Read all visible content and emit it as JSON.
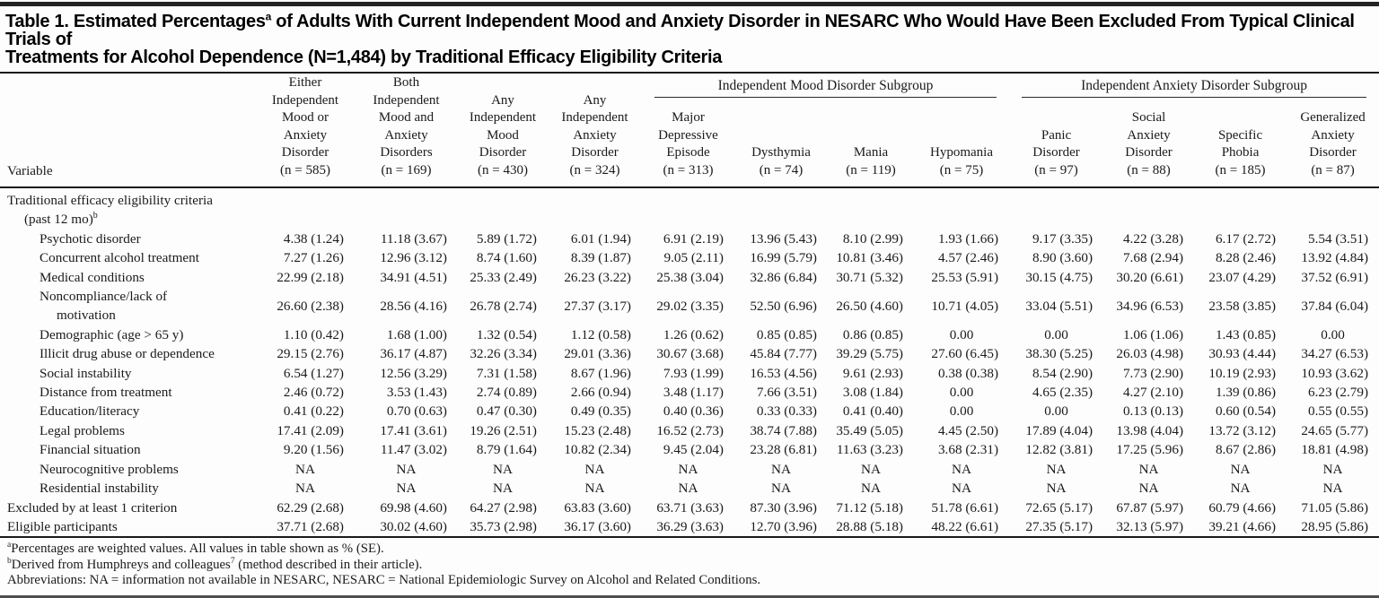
{
  "title": {
    "pre": "Table 1. Estimated Percentages",
    "sup": "a",
    "post": " of Adults With Current Independent Mood and Anxiety Disorder in NESARC Who Would Have Been Excluded From Typical Clinical Trials of",
    "line2": "Treatments for Alcohol Dependence (N=1,484) by Traditional Efficacy Eligibility Criteria"
  },
  "table": {
    "variable_header": "Variable",
    "groups": [
      {
        "label": "Independent Mood Disorder Subgroup",
        "span": 4
      },
      {
        "label": "Independent Anxiety Disorder Subgroup",
        "span": 4
      }
    ],
    "columns": [
      {
        "label": "Either\nIndependent\nMood or\nAnxiety\nDisorder\n(n = 585)"
      },
      {
        "label": "Both\nIndependent\nMood and\nAnxiety\nDisorders\n(n = 169)"
      },
      {
        "label": "Any\nIndependent\nMood\nDisorder\n(n = 430)"
      },
      {
        "label": "Any\nIndependent\nAnxiety\nDisorder\n(n = 324)"
      },
      {
        "label": "Major\nDepressive\nEpisode\n(n = 313)",
        "group": "Independent Mood Disorder Subgroup"
      },
      {
        "label": "Dysthymia\n(n = 74)",
        "group": "Independent Mood Disorder Subgroup"
      },
      {
        "label": "Mania\n(n = 119)",
        "group": "Independent Mood Disorder Subgroup"
      },
      {
        "label": "Hypomania\n(n = 75)",
        "group": "Independent Mood Disorder Subgroup"
      },
      {
        "label": "Panic\nDisorder\n(n = 97)",
        "group": "Independent Anxiety Disorder Subgroup"
      },
      {
        "label": "Social\nAnxiety\nDisorder\n(n = 88)",
        "group": "Independent Anxiety Disorder Subgroup"
      },
      {
        "label": "Specific\nPhobia\n(n = 185)",
        "group": "Independent Anxiety Disorder Subgroup"
      },
      {
        "label": "Generalized\nAnxiety\nDisorder\n(n = 87)",
        "group": "Independent Anxiety Disorder Subgroup"
      }
    ],
    "rows": [
      {
        "label": "Traditional efficacy eligibility criteria\n     (past 12 mo)",
        "sup": "b",
        "indent": 0,
        "values": []
      },
      {
        "label": "Psychotic disorder",
        "indent": 1,
        "values": [
          "4.38 (1.24)",
          "11.18 (3.67)",
          "5.89 (1.72)",
          "6.01 (1.94)",
          "6.91 (2.19)",
          "13.96 (5.43)",
          "8.10 (2.99)",
          "1.93 (1.66)",
          "9.17 (3.35)",
          "4.22 (3.28)",
          "6.17 (2.72)",
          "5.54 (3.51)"
        ]
      },
      {
        "label": "Concurrent alcohol treatment",
        "indent": 1,
        "values": [
          "7.27 (1.26)",
          "12.96 (3.12)",
          "8.74 (1.60)",
          "8.39 (1.87)",
          "9.05 (2.11)",
          "16.99 (5.79)",
          "10.81 (3.46)",
          "4.57 (2.46)",
          "8.90 (3.60)",
          "7.68 (2.94)",
          "8.28 (2.46)",
          "13.92 (4.84)"
        ]
      },
      {
        "label": "Medical conditions",
        "indent": 1,
        "values": [
          "22.99 (2.18)",
          "34.91 (4.51)",
          "25.33 (2.49)",
          "26.23 (3.22)",
          "25.38 (3.04)",
          "32.86 (6.84)",
          "30.71 (5.32)",
          "25.53 (5.91)",
          "30.15 (4.75)",
          "30.20 (6.61)",
          "23.07 (4.29)",
          "37.52 (6.91)"
        ]
      },
      {
        "label": "Noncompliance/lack of\n     motivation",
        "indent": 1,
        "values": [
          "26.60 (2.38)",
          "28.56 (4.16)",
          "26.78 (2.74)",
          "27.37 (3.17)",
          "29.02 (3.35)",
          "52.50 (6.96)",
          "26.50 (4.60)",
          "10.71 (4.05)",
          "33.04 (5.51)",
          "34.96 (6.53)",
          "23.58 (3.85)",
          "37.84 (6.04)"
        ]
      },
      {
        "label": "Demographic (age > 65 y)",
        "indent": 1,
        "values": [
          "1.10 (0.42)",
          "1.68 (1.00)",
          "1.32 (0.54)",
          "1.12 (0.58)",
          "1.26 (0.62)",
          "0.85 (0.85)",
          "0.86 (0.85)",
          "0.00",
          "0.00",
          "1.06 (1.06)",
          "1.43 (0.85)",
          "0.00"
        ]
      },
      {
        "label": "Illicit drug abuse or dependence",
        "indent": 1,
        "values": [
          "29.15 (2.76)",
          "36.17 (4.87)",
          "32.26 (3.34)",
          "29.01 (3.36)",
          "30.67 (3.68)",
          "45.84 (7.77)",
          "39.29 (5.75)",
          "27.60 (6.45)",
          "38.30 (5.25)",
          "26.03 (4.98)",
          "30.93 (4.44)",
          "34.27 (6.53)"
        ]
      },
      {
        "label": "Social instability",
        "indent": 1,
        "values": [
          "6.54 (1.27)",
          "12.56 (3.29)",
          "7.31 (1.58)",
          "8.67 (1.96)",
          "7.93 (1.99)",
          "16.53 (4.56)",
          "9.61 (2.93)",
          "0.38 (0.38)",
          "8.54 (2.90)",
          "7.73 (2.90)",
          "10.19 (2.93)",
          "10.93 (3.62)"
        ]
      },
      {
        "label": "Distance from treatment",
        "indent": 1,
        "values": [
          "2.46 (0.72)",
          "3.53 (1.43)",
          "2.74 (0.89)",
          "2.66 (0.94)",
          "3.48 (1.17)",
          "7.66 (3.51)",
          "3.08 (1.84)",
          "0.00",
          "4.65 (2.35)",
          "4.27 (2.10)",
          "1.39 (0.86)",
          "6.23 (2.79)"
        ]
      },
      {
        "label": "Education/literacy",
        "indent": 1,
        "values": [
          "0.41 (0.22)",
          "0.70 (0.63)",
          "0.47 (0.30)",
          "0.49 (0.35)",
          "0.40 (0.36)",
          "0.33 (0.33)",
          "0.41 (0.40)",
          "0.00",
          "0.00",
          "0.13 (0.13)",
          "0.60 (0.54)",
          "0.55 (0.55)"
        ]
      },
      {
        "label": "Legal problems",
        "indent": 1,
        "values": [
          "17.41 (2.09)",
          "17.41 (3.61)",
          "19.26 (2.51)",
          "15.23 (2.48)",
          "16.52 (2.73)",
          "38.74 (7.88)",
          "35.49 (5.05)",
          "4.45 (2.50)",
          "17.89 (4.04)",
          "13.98 (4.04)",
          "13.72 (3.12)",
          "24.65 (5.77)"
        ]
      },
      {
        "label": "Financial situation",
        "indent": 1,
        "values": [
          "9.20 (1.56)",
          "11.47 (3.02)",
          "8.79 (1.64)",
          "10.82 (2.34)",
          "9.45 (2.04)",
          "23.28 (6.81)",
          "11.63 (3.23)",
          "3.68 (2.31)",
          "12.82 (3.81)",
          "17.25 (5.96)",
          "8.67 (2.86)",
          "18.81 (4.98)"
        ]
      },
      {
        "label": "Neurocognitive problems",
        "indent": 1,
        "values": [
          "NA",
          "NA",
          "NA",
          "NA",
          "NA",
          "NA",
          "NA",
          "NA",
          "NA",
          "NA",
          "NA",
          "NA"
        ]
      },
      {
        "label": "Residential instability",
        "indent": 1,
        "values": [
          "NA",
          "NA",
          "NA",
          "NA",
          "NA",
          "NA",
          "NA",
          "NA",
          "NA",
          "NA",
          "NA",
          "NA"
        ]
      },
      {
        "label": "Excluded by at least 1 criterion",
        "indent": 0,
        "values": [
          "62.29 (2.68)",
          "69.98 (4.60)",
          "64.27 (2.98)",
          "63.83 (3.60)",
          "63.71 (3.63)",
          "87.30 (3.96)",
          "71.12 (5.18)",
          "51.78 (6.61)",
          "72.65 (5.17)",
          "67.87 (5.97)",
          "60.79 (4.66)",
          "71.05 (5.86)"
        ]
      },
      {
        "label": "Eligible participants",
        "indent": 0,
        "values": [
          "37.71 (2.68)",
          "30.02 (4.60)",
          "35.73 (2.98)",
          "36.17 (3.60)",
          "36.29 (3.63)",
          "12.70 (3.96)",
          "28.88 (5.18)",
          "48.22 (6.61)",
          "27.35 (5.17)",
          "32.13 (5.97)",
          "39.21 (4.66)",
          "28.95 (5.86)"
        ]
      }
    ]
  },
  "footnotes": [
    {
      "sup": "a",
      "pre": "Percentages are weighted values. All values in table shown as % (SE).",
      "midsup": "",
      "post": ""
    },
    {
      "sup": "b",
      "pre": "Derived from Humphreys and colleagues",
      "midsup": "7",
      "post": " (method described in their article)."
    },
    {
      "sup": "",
      "pre": "Abbreviations: NA = information not available in NESARC, NESARC = National Epidemiologic Survey on Alcohol and Related Conditions.",
      "midsup": "",
      "post": ""
    }
  ]
}
